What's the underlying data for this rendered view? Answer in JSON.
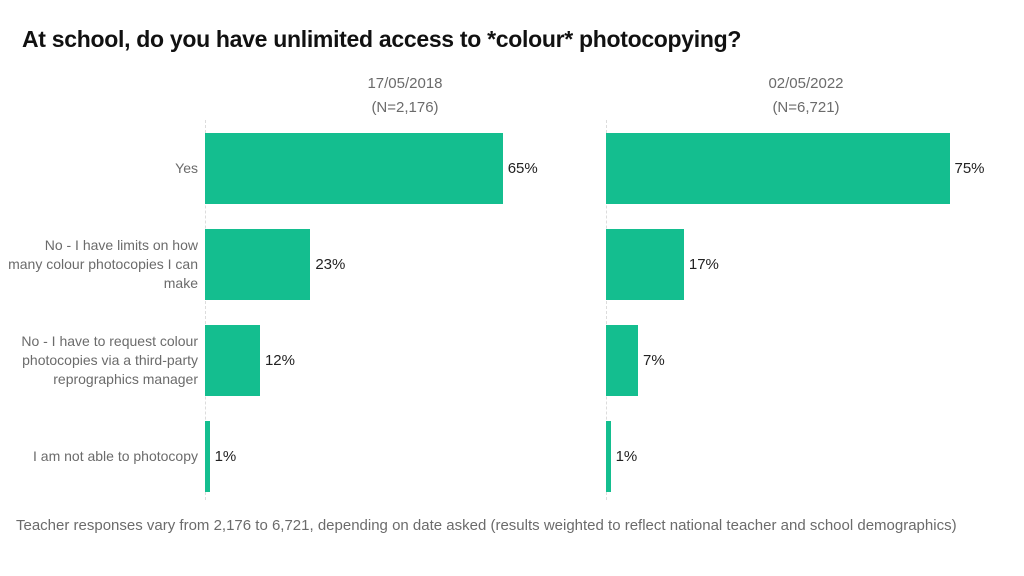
{
  "title": "At school, do you have unlimited access to *colour* photocopying?",
  "panels": [
    {
      "date": "17/05/2018",
      "n": "(N=2,176)"
    },
    {
      "date": "02/05/2022",
      "n": "(N=6,721)"
    }
  ],
  "categories": [
    "Yes",
    "No - I have limits on how many colour photocopies I can make",
    "No - I have to request colour photocopies via a third-party reprographics manager",
    "I am not able to photocopy"
  ],
  "footnote": "Teacher responses vary from 2,176 to 6,721, depending on date asked (results weighted to reflect national teacher and school demographics)",
  "colors": {
    "bar": "#14BE8F"
  },
  "chart_data": {
    "type": "bar",
    "orientation": "horizontal",
    "title": "At school, do you have unlimited access to *colour* photocopying?",
    "categories": [
      "Yes",
      "No - I have limits on how many colour photocopies I can make",
      "No - I have to request colour photocopies via a third-party reprographics manager",
      "I am not able to photocopy"
    ],
    "series": [
      {
        "name": "17/05/2018 (N=2,176)",
        "values": [
          65,
          23,
          12,
          1
        ],
        "labels": [
          "65%",
          "23%",
          "12%",
          "1%"
        ]
      },
      {
        "name": "02/05/2022 (N=6,721)",
        "values": [
          75,
          17,
          7,
          1
        ],
        "labels": [
          "75%",
          "17%",
          "7%",
          "1%"
        ]
      }
    ],
    "xlabel": "",
    "ylabel": "",
    "unit": "%",
    "xlim": [
      0,
      80
    ],
    "grid": false,
    "legend": "none (panel headers)",
    "footnote": "Teacher responses vary from 2,176 to 6,721, depending on date asked (results weighted to reflect national teacher and school demographics)"
  }
}
